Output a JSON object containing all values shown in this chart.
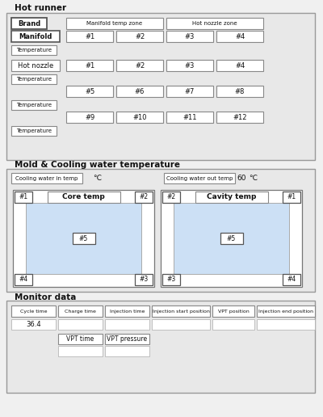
{
  "bg_color": "#e8e8e8",
  "white": "#ffffff",
  "light_blue": "#cce0f5",
  "panel_bg": "#e0e0e0",
  "section1_title": "Hot runner",
  "section2_title": "Mold & Cooling water temperature",
  "section3_title": "Monitor data",
  "brand": "Brand",
  "manifold": "Manifold",
  "manifold_zone": "Manifold temp zone",
  "hot_nozzle": "Hot nozzle",
  "hot_nozzle_zone": "Hot nozzle zone",
  "temperature": "Temperature",
  "manifold_nums": [
    "#1",
    "#2",
    "#3",
    "#4"
  ],
  "hot_nozzle_row1": [
    "#1",
    "#2",
    "#3",
    "#4"
  ],
  "hot_nozzle_row2": [
    "#5",
    "#6",
    "#7",
    "#8"
  ],
  "hot_nozzle_row3": [
    "#9",
    "#10",
    "#11",
    "#12"
  ],
  "cooling_in": "Cooling water in temp",
  "cooling_out": "Cooling water out temp",
  "cooling_out_val": "60",
  "celsius": "℃",
  "core_temp": "Core temp",
  "cavity_temp": "Cavity temp",
  "core_corners": [
    "#1",
    "#2",
    "#4",
    "#3"
  ],
  "cavity_corners": [
    "#2",
    "#1",
    "#3",
    "#4"
  ],
  "center_label": "#5",
  "monitor_headers": [
    "Cycle time",
    "Charge time",
    "Injection time",
    "Injection start position",
    "VPT position",
    "Injection end position"
  ],
  "monitor_val": "36.4",
  "vpt_time": "VPT time",
  "vpt_pressure": "VPT pressure",
  "header_widths": [
    55,
    55,
    55,
    72,
    52,
    72
  ]
}
